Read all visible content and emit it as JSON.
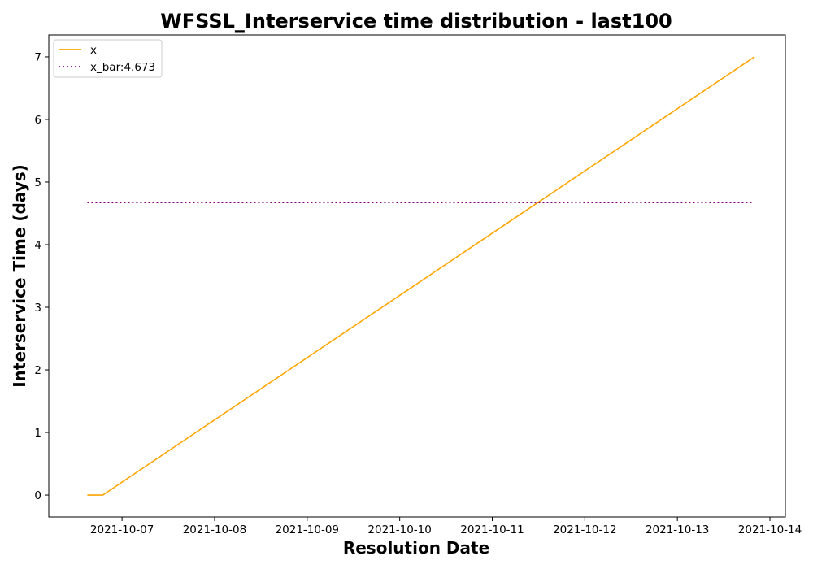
{
  "chart_data": {
    "type": "line",
    "title": "WFSSL_Interservice time distribution - last100",
    "xlabel": "Resolution Date",
    "ylabel": "Interservice Time (days)",
    "x_axis_type": "date",
    "xlim": [
      "2021-10-06 05:00",
      "2021-10-14 04:00"
    ],
    "ylim": [
      -0.35,
      7.35
    ],
    "xticks": [
      "2021-10-07",
      "2021-10-08",
      "2021-10-09",
      "2021-10-10",
      "2021-10-11",
      "2021-10-12",
      "2021-10-13",
      "2021-10-14"
    ],
    "yticks": [
      0,
      1,
      2,
      3,
      4,
      5,
      6,
      7
    ],
    "grid": false,
    "legend_position": "top-left",
    "series": [
      {
        "name": "x",
        "color": "#ffa500",
        "style": "solid",
        "x": [
          "2021-10-06 15:00",
          "2021-10-06 19:00",
          "2021-10-13 20:00"
        ],
        "y": [
          0,
          0,
          7
        ]
      },
      {
        "name": "x_bar:4.673",
        "color": "#800080",
        "style": "dotted",
        "x": [
          "2021-10-06 15:00",
          "2021-10-13 20:00"
        ],
        "y": [
          4.673,
          4.673
        ]
      }
    ]
  }
}
